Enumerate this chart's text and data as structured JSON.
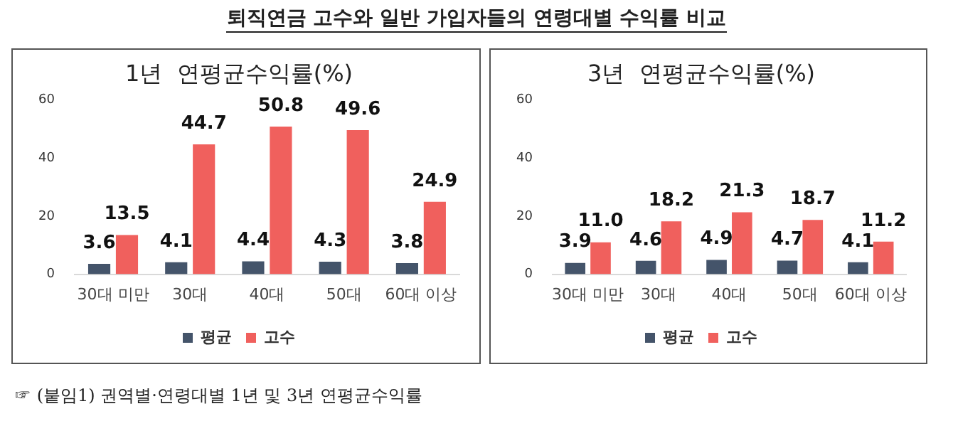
{
  "chart_data": [
    {
      "type": "bar",
      "title": "1년  연평균수익률(%)",
      "categories": [
        "30대 미만",
        "30대",
        "40대",
        "50대",
        "60대 이상"
      ],
      "series": [
        {
          "name": "평균",
          "color": "#44546a",
          "values": [
            3.6,
            4.1,
            4.4,
            4.3,
            3.8
          ]
        },
        {
          "name": "고수",
          "color": "#f0605d",
          "values": [
            13.5,
            44.7,
            50.8,
            49.6,
            24.9
          ]
        }
      ],
      "ylim": [
        0,
        60
      ],
      "yticks": [
        0,
        20,
        40,
        60
      ],
      "grid": false,
      "legend": "bottom",
      "data_labels": true,
      "annotations": [
        "퇴직연금 고수와 일반 가입자들의 연령대별 수익률 비교",
        "☞ (붙임1) 권역별·연령대별 1년 및 3년 연평균수익률"
      ]
    },
    {
      "type": "bar",
      "title": "3년  연평균수익률(%)",
      "categories": [
        "30대 미만",
        "30대",
        "40대",
        "50대",
        "60대 이상"
      ],
      "series": [
        {
          "name": "평균",
          "color": "#44546a",
          "values": [
            3.9,
            4.6,
            4.9,
            4.7,
            4.1
          ],
          "value_labels": [
            "3.9",
            "4.6",
            "4.9",
            "4.7",
            "4.1"
          ]
        },
        {
          "name": "고수",
          "color": "#f0605d",
          "values": [
            11.0,
            18.2,
            21.3,
            18.7,
            11.2
          ],
          "value_labels": [
            "11.0",
            "18.2",
            "21.3",
            "18.7",
            "11.2"
          ]
        }
      ],
      "ylim": [
        0,
        60
      ],
      "yticks": [
        0,
        20,
        40,
        60
      ],
      "grid": false,
      "legend": "bottom"
    }
  ]
}
